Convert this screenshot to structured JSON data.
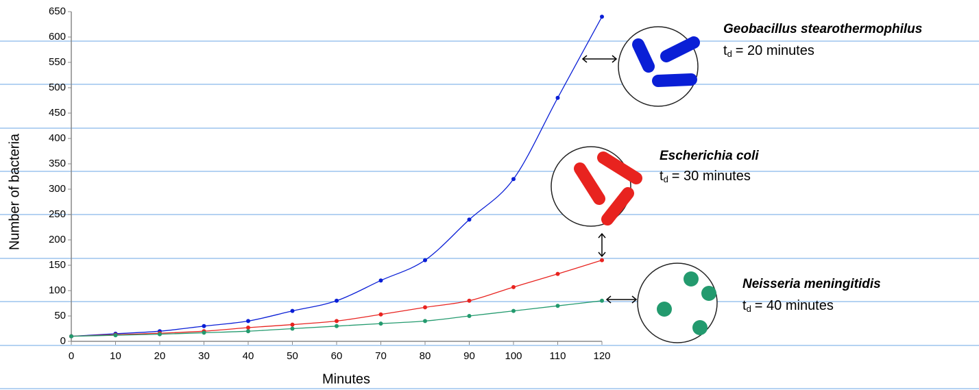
{
  "chart_data": {
    "type": "line",
    "x_label": "Minutes",
    "y_label": "Number of bacteria",
    "x": [
      0,
      10,
      20,
      30,
      40,
      50,
      60,
      70,
      80,
      90,
      100,
      110,
      120
    ],
    "xlim": [
      0,
      120
    ],
    "xticks": [
      0,
      10,
      20,
      30,
      40,
      50,
      60,
      70,
      80,
      90,
      100,
      110,
      120
    ],
    "ylim": [
      0,
      650
    ],
    "yticks": [
      0,
      50,
      100,
      150,
      200,
      250,
      300,
      350,
      400,
      450,
      500,
      550,
      600,
      650
    ],
    "series": [
      {
        "name": "Geobacillus stearothermophilus",
        "color": "#0a1fd6",
        "td_base": "t",
        "td_sub": "d",
        "td_rest": "= 20 minutes",
        "values": [
          10,
          15,
          20,
          30,
          40,
          60,
          80,
          120,
          160,
          240,
          320,
          480,
          640
        ]
      },
      {
        "name": "Escherichia coli",
        "color": "#e8231f",
        "td_base": "t",
        "td_sub": "d",
        "td_rest": "= 30 minutes",
        "values": [
          10,
          13,
          16,
          20,
          27,
          33,
          40,
          53,
          67,
          80,
          107,
          133,
          160
        ]
      },
      {
        "name": "Neisseria meningitidis",
        "color": "#239a6e",
        "td_base": "t",
        "td_sub": "d",
        "td_rest": "= 40 minutes",
        "values": [
          10,
          12,
          14,
          17,
          20,
          25,
          30,
          35,
          40,
          50,
          60,
          70,
          80
        ]
      }
    ]
  }
}
